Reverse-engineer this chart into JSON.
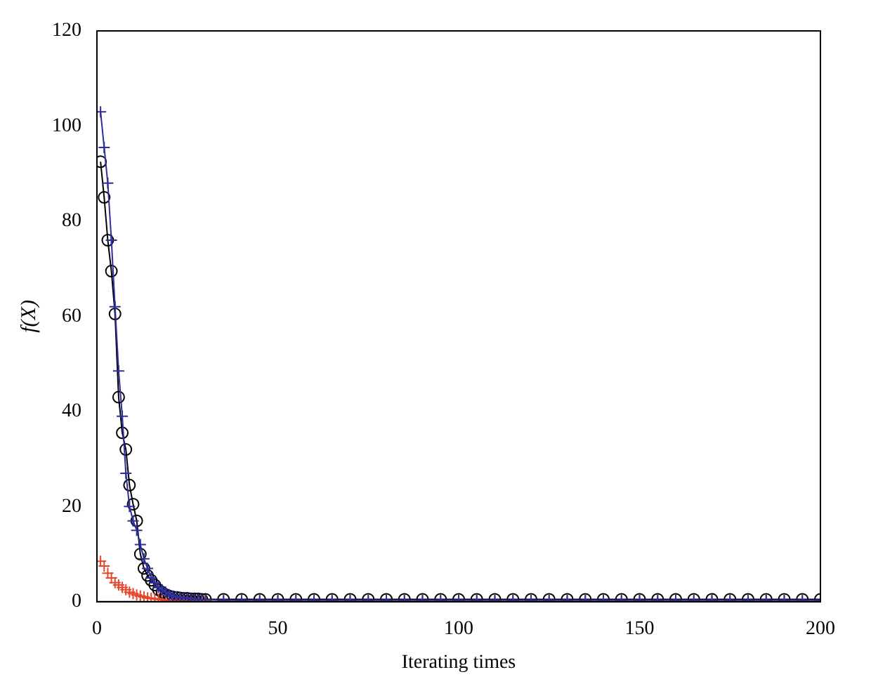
{
  "chart_data": {
    "type": "line",
    "xlabel": "Iterating times",
    "ylabel": "f(X)",
    "xlim": [
      0,
      200
    ],
    "xticks": [
      0,
      50,
      100,
      150,
      200
    ],
    "ylim": [
      0,
      120
    ],
    "yticks": [
      0,
      20,
      40,
      60,
      80,
      100,
      120
    ],
    "grid": false,
    "legend": false,
    "line_style": "solid",
    "x": [
      1,
      2,
      3,
      4,
      5,
      6,
      7,
      8,
      9,
      10,
      11,
      12,
      13,
      14,
      15,
      16,
      17,
      18,
      19,
      20,
      21,
      22,
      23,
      24,
      25,
      26,
      27,
      28,
      29,
      30,
      35,
      40,
      45,
      50,
      55,
      60,
      65,
      70,
      75,
      80,
      85,
      90,
      95,
      100,
      105,
      110,
      115,
      120,
      125,
      130,
      135,
      140,
      145,
      150,
      155,
      160,
      165,
      170,
      175,
      180,
      185,
      190,
      195,
      200
    ],
    "series": [
      {
        "color": "#000000",
        "marker": "circle",
        "values": [
          92.5,
          85,
          76,
          69.5,
          60.5,
          43,
          35.5,
          32,
          24.5,
          20.5,
          17,
          10,
          7,
          5.5,
          4.5,
          3.5,
          2.5,
          2,
          1.5,
          1.2,
          1,
          0.9,
          0.8,
          0.7,
          0.7,
          0.6,
          0.6,
          0.6,
          0.5,
          0.5,
          0.5,
          0.5,
          0.5,
          0.5,
          0.5,
          0.5,
          0.5,
          0.5,
          0.5,
          0.5,
          0.5,
          0.5,
          0.5,
          0.5,
          0.5,
          0.5,
          0.5,
          0.5,
          0.5,
          0.5,
          0.5,
          0.5,
          0.5,
          0.5,
          0.5,
          0.5,
          0.5,
          0.5,
          0.5,
          0.5,
          0.5,
          0.5,
          0.5,
          0.5
        ]
      },
      {
        "color": "#e8452a",
        "marker": "cross",
        "type": "scatter",
        "values": [
          8.5,
          7.5,
          6,
          5,
          4,
          3.5,
          3,
          2.5,
          2,
          1.7,
          1.4,
          1.2,
          1,
          0.8,
          0.7,
          0.6,
          0.5,
          0.4,
          0.3,
          0.3,
          0.2,
          0.2,
          0.2,
          0.1,
          0.1,
          0.1,
          0.1,
          0.1,
          0.1,
          0.1,
          0.1,
          0.1,
          0.1,
          0.1,
          0.1,
          0.1,
          0.1,
          0.1,
          0.1,
          0.1,
          0.1,
          0.1,
          0.1,
          0.1,
          0.1,
          0.1,
          0.1,
          0.1,
          0.1,
          0.1,
          0.1,
          0.1,
          0.1,
          0.1,
          0.1,
          0.1,
          0.1,
          0.1,
          0.1,
          0.1,
          0.1,
          0.1,
          0.1,
          0.1
        ]
      },
      {
        "color": "#2e2e9e",
        "marker": "cross",
        "values": [
          103,
          95.5,
          88,
          76,
          62,
          48.5,
          39,
          27,
          20,
          17,
          15,
          12,
          9,
          7,
          5,
          4,
          3,
          2.5,
          2,
          1.5,
          1.2,
          1,
          0.9,
          0.8,
          0.7,
          0.6,
          0.5,
          0.5,
          0.4,
          0.4,
          0.3,
          0.3,
          0.3,
          0.3,
          0.3,
          0.3,
          0.3,
          0.3,
          0.3,
          0.3,
          0.3,
          0.3,
          0.3,
          0.3,
          0.3,
          0.3,
          0.3,
          0.3,
          0.3,
          0.3,
          0.3,
          0.3,
          0.3,
          0.3,
          0.3,
          0.3,
          0.3,
          0.3,
          0.3,
          0.3,
          0.3,
          0.3,
          0.3,
          0.3
        ]
      }
    ]
  }
}
